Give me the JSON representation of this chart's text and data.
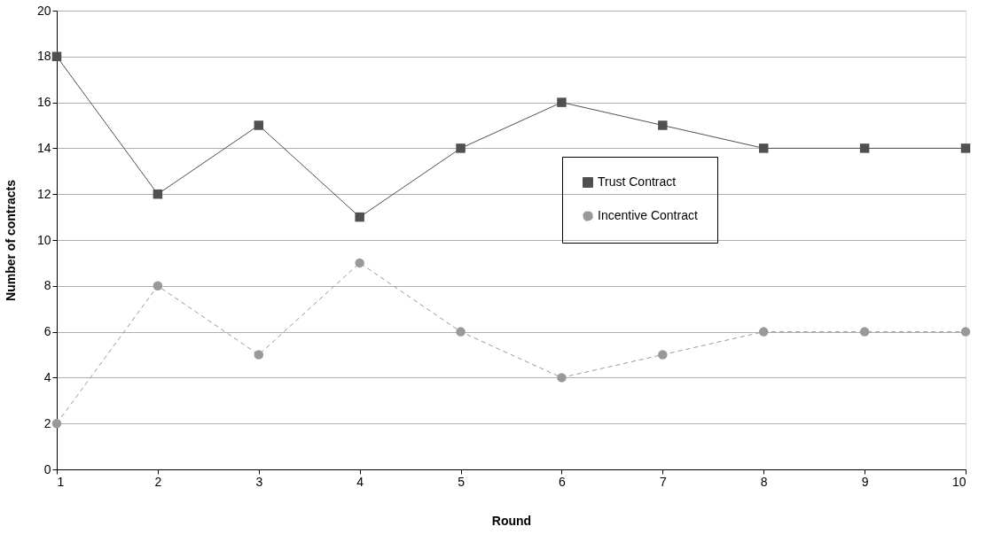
{
  "chart_data": {
    "type": "line",
    "xlabel": "Round",
    "ylabel": "Number of contracts",
    "x": [
      1,
      2,
      3,
      4,
      5,
      6,
      7,
      8,
      9,
      10
    ],
    "xlim": [
      1,
      10
    ],
    "xticks": [
      1,
      2,
      3,
      4,
      5,
      6,
      7,
      8,
      9,
      10
    ],
    "ylim": [
      0,
      20
    ],
    "yticks": [
      0,
      2,
      4,
      6,
      8,
      10,
      12,
      14,
      16,
      18,
      20
    ],
    "grid": "y",
    "legend": "right",
    "series": [
      {
        "name": "Trust Contract",
        "color": "#505050",
        "marker": "square",
        "line_style": "solid",
        "values": [
          18,
          12,
          15,
          11,
          14,
          16,
          15,
          14,
          14,
          14
        ]
      },
      {
        "name": "Incentive Contract",
        "color": "#999999",
        "marker": "circle",
        "line_style": "dashed",
        "values": [
          2,
          8,
          5,
          9,
          6,
          4,
          5,
          6,
          6,
          6
        ]
      }
    ]
  }
}
